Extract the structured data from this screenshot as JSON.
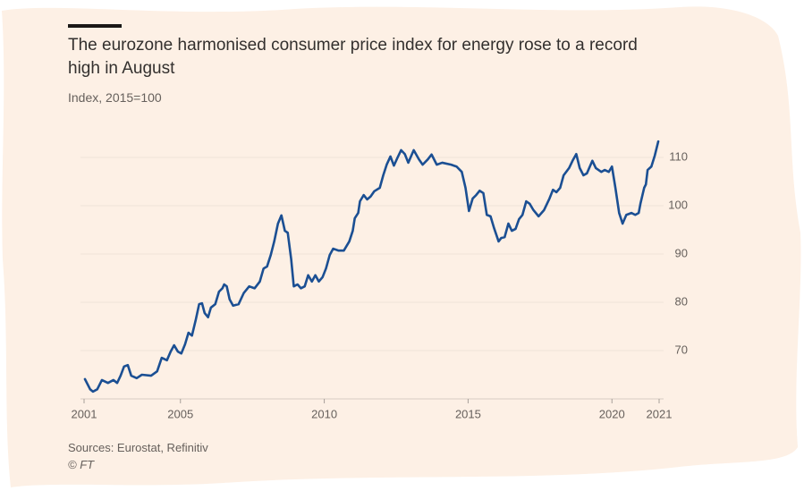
{
  "chart_data": {
    "type": "line",
    "title": "The eurozone harmonised consumer price index for energy rose to a record high in August",
    "subtitle": "Index, 2015=100",
    "source": "Sources: Eurostat, Refinitiv",
    "credit": "© FT",
    "color": "#1b4f93",
    "grid": true,
    "xlim": [
      2001.65,
      2021.64
    ],
    "ylim": [
      60,
      115
    ],
    "yticks": [
      70,
      80,
      90,
      100,
      110
    ],
    "xticks": [
      {
        "value": 2001.65,
        "label": "2001"
      },
      2005,
      2010,
      2015,
      2020,
      {
        "value": 2021.64,
        "label": "2021"
      }
    ],
    "x": [
      2001.68,
      2001.86,
      2001.96,
      2002.11,
      2002.27,
      2002.48,
      2002.67,
      2002.8,
      2002.92,
      2003.04,
      2003.17,
      2003.29,
      2003.48,
      2003.66,
      2003.98,
      2004.19,
      2004.35,
      2004.53,
      2004.66,
      2004.78,
      2004.91,
      2005.03,
      2005.16,
      2005.28,
      2005.4,
      2005.53,
      2005.65,
      2005.75,
      2005.84,
      2005.96,
      2006.06,
      2006.21,
      2006.34,
      2006.46,
      2006.52,
      2006.61,
      2006.71,
      2006.83,
      2007.02,
      2007.2,
      2007.39,
      2007.58,
      2007.76,
      2007.89,
      2008.01,
      2008.14,
      2008.26,
      2008.39,
      2008.51,
      2008.63,
      2008.73,
      2008.85,
      2008.94,
      2009.07,
      2009.19,
      2009.32,
      2009.44,
      2009.57,
      2009.69,
      2009.81,
      2009.94,
      2010.06,
      2010.19,
      2010.31,
      2010.5,
      2010.68,
      2010.87,
      2010.99,
      2011.06,
      2011.18,
      2011.24,
      2011.37,
      2011.49,
      2011.61,
      2011.74,
      2011.93,
      2012.05,
      2012.17,
      2012.3,
      2012.42,
      2012.55,
      2012.67,
      2012.8,
      2012.92,
      2013.11,
      2013.29,
      2013.42,
      2013.6,
      2013.73,
      2013.91,
      2014.1,
      2014.41,
      2014.6,
      2014.78,
      2014.91,
      2015.03,
      2015.16,
      2015.28,
      2015.4,
      2015.53,
      2015.65,
      2015.78,
      2015.9,
      2016.06,
      2016.15,
      2016.27,
      2016.4,
      2016.52,
      2016.65,
      2016.77,
      2016.89,
      2017.02,
      2017.14,
      2017.27,
      2017.45,
      2017.64,
      2017.83,
      2017.95,
      2018.07,
      2018.2,
      2018.32,
      2018.51,
      2018.63,
      2018.76,
      2018.88,
      2019.01,
      2019.13,
      2019.32,
      2019.44,
      2019.63,
      2019.75,
      2019.89,
      2020.0,
      2020.12,
      2020.25,
      2020.37,
      2020.5,
      2020.68,
      2020.81,
      2020.93,
      2020.99,
      2021.12,
      2021.18,
      2021.24,
      2021.37,
      2021.49,
      2021.61
    ],
    "values": [
      64.1,
      62,
      61.5,
      62,
      63.9,
      63.3,
      63.9,
      63.3,
      64.8,
      66.7,
      67,
      64.8,
      64.3,
      65,
      64.8,
      65.7,
      68.5,
      68,
      69.8,
      71.1,
      69.8,
      69.4,
      71.3,
      73.7,
      73.1,
      76.3,
      79.6,
      79.8,
      77.8,
      76.9,
      78.9,
      79.6,
      82.2,
      82.9,
      83.7,
      83.3,
      80.6,
      79.3,
      79.6,
      81.9,
      83.3,
      82.9,
      84.3,
      87,
      87.4,
      89.8,
      92.6,
      96.3,
      98,
      94.8,
      94.4,
      88.9,
      83.3,
      83.7,
      82.9,
      83.3,
      85.6,
      84.3,
      85.6,
      84.3,
      85.2,
      87,
      89.8,
      91.1,
      90.7,
      90.7,
      92.6,
      94.8,
      97.4,
      98.5,
      100.9,
      102.2,
      101.3,
      101.9,
      103,
      103.7,
      106.3,
      108.5,
      110.2,
      108.3,
      110,
      111.5,
      110.7,
      108.9,
      111.5,
      109.6,
      108.5,
      109.6,
      110.6,
      108.5,
      108.9,
      108.5,
      108.1,
      107,
      103.7,
      98.9,
      101.5,
      102.2,
      103.1,
      102.6,
      98.1,
      97.8,
      95.4,
      92.6,
      93.3,
      93.5,
      96.3,
      94.8,
      95.2,
      97.2,
      98.1,
      100.9,
      100.4,
      99.1,
      97.8,
      99.1,
      101.5,
      103.3,
      102.8,
      103.7,
      106.3,
      107.8,
      109.3,
      110.7,
      107.8,
      106.3,
      106.7,
      109.3,
      107.8,
      107,
      107.4,
      107,
      108.1,
      103.7,
      98.5,
      96.3,
      98.1,
      98.5,
      98.1,
      98.5,
      100.4,
      103.7,
      104.4,
      107.4,
      108.1,
      110.4,
      113.3
    ]
  }
}
